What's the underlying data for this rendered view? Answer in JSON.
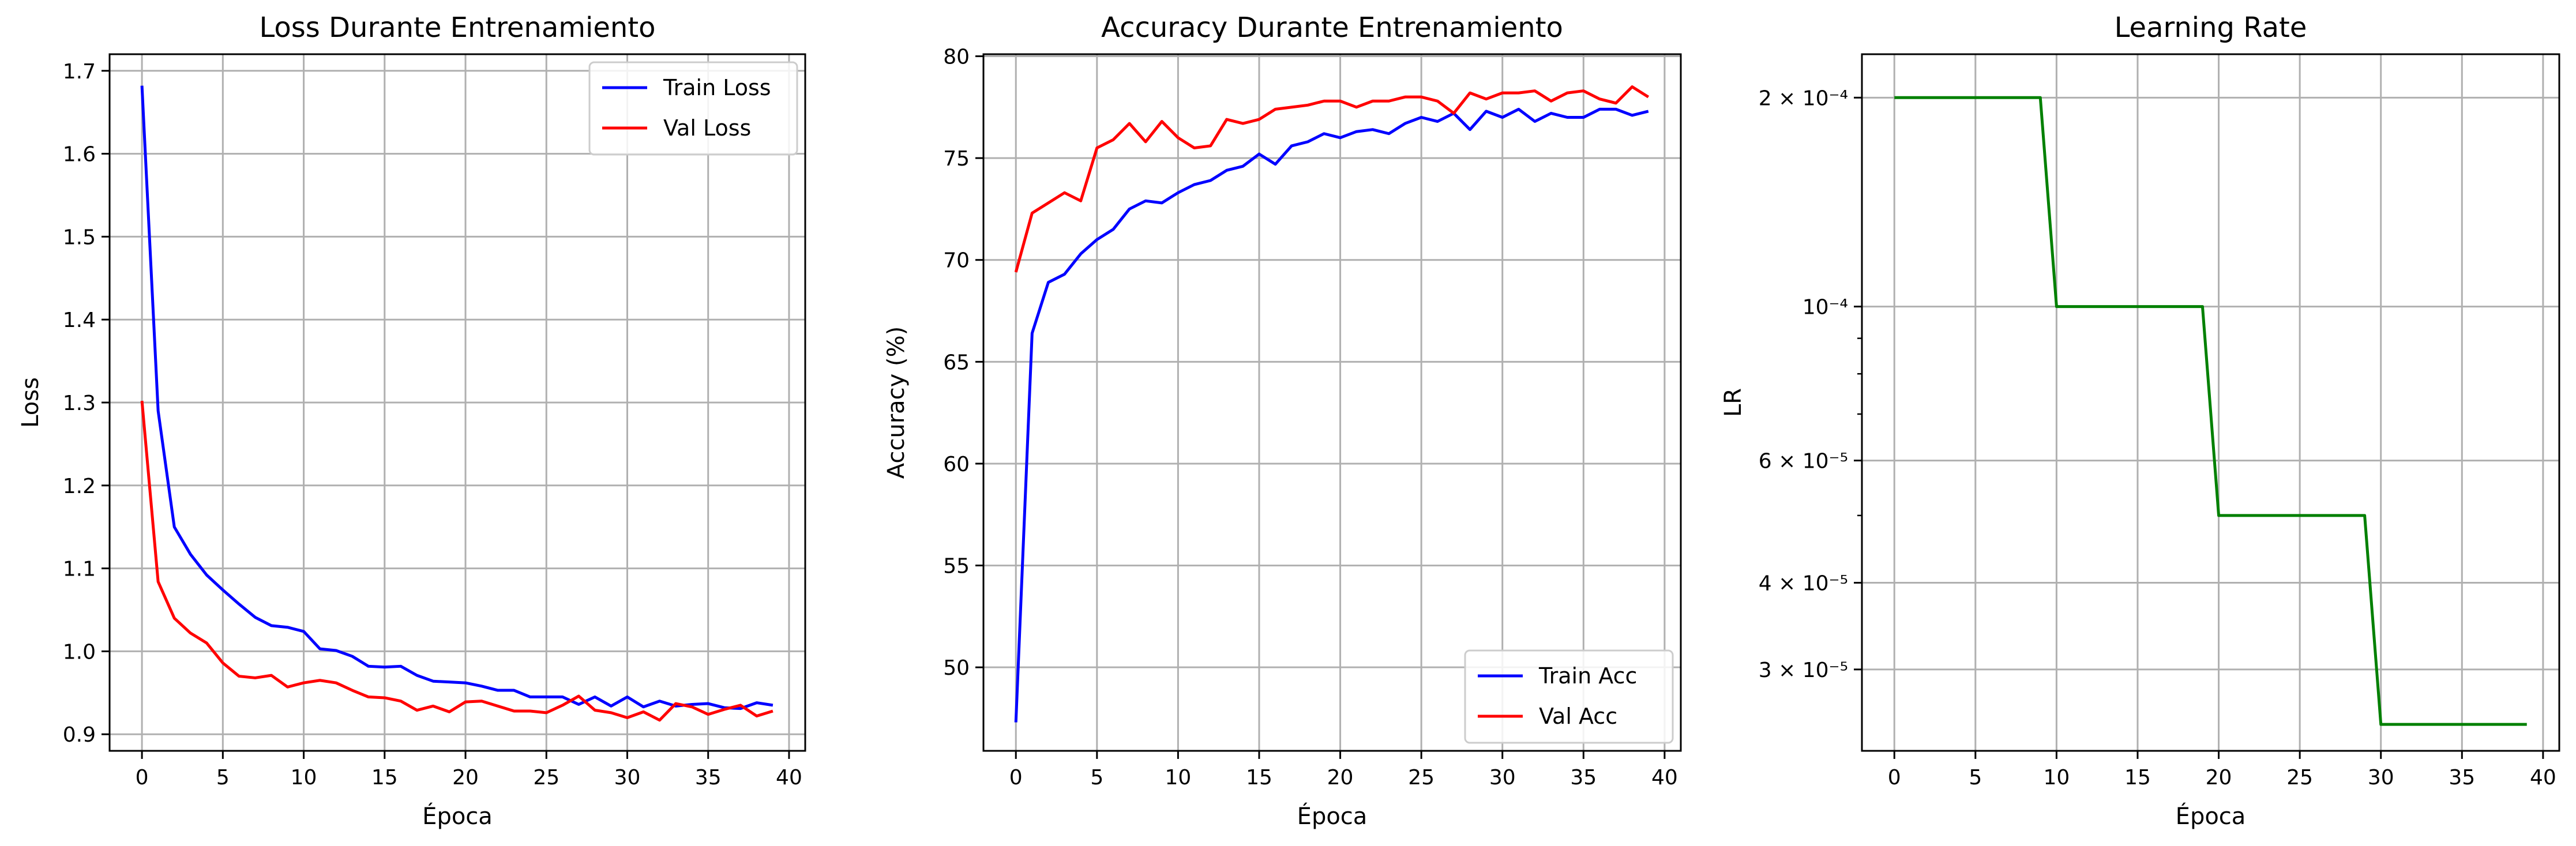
{
  "chart_data": [
    {
      "type": "line",
      "title": "Loss Durante Entrenamiento",
      "xlabel": "Época",
      "ylabel": "Loss",
      "xlim": [
        -2,
        41
      ],
      "ylim": [
        0.88,
        1.72
      ],
      "xticks": [
        0,
        5,
        10,
        15,
        20,
        25,
        30,
        35,
        40
      ],
      "yticks": [
        0.9,
        1.0,
        1.1,
        1.2,
        1.3,
        1.4,
        1.5,
        1.6,
        1.7
      ],
      "ytick_labels": [
        "0.9",
        "1.0",
        "1.1",
        "1.2",
        "1.3",
        "1.4",
        "1.5",
        "1.6",
        "1.7"
      ],
      "grid": true,
      "legend": "upper right",
      "x": [
        0,
        1,
        2,
        3,
        4,
        5,
        6,
        7,
        8,
        9,
        10,
        11,
        12,
        13,
        14,
        15,
        16,
        17,
        18,
        19,
        20,
        21,
        22,
        23,
        24,
        25,
        26,
        27,
        28,
        29,
        30,
        31,
        32,
        33,
        34,
        35,
        36,
        37,
        38,
        39
      ],
      "series": [
        {
          "name": "Train Loss",
          "color": "#0000ff",
          "values": [
            1.682,
            1.29,
            1.15,
            1.117,
            1.092,
            1.074,
            1.057,
            1.041,
            1.031,
            1.029,
            1.024,
            1.003,
            1.001,
            0.994,
            0.982,
            0.981,
            0.982,
            0.971,
            0.964,
            0.963,
            0.962,
            0.958,
            0.953,
            0.953,
            0.945,
            0.945,
            0.945,
            0.936,
            0.945,
            0.934,
            0.945,
            0.933,
            0.94,
            0.934,
            0.936,
            0.937,
            0.932,
            0.931,
            0.938,
            0.935
          ]
        },
        {
          "name": "Val Loss",
          "color": "#ff0000",
          "values": [
            1.302,
            1.084,
            1.04,
            1.022,
            1.01,
            0.986,
            0.97,
            0.968,
            0.971,
            0.957,
            0.962,
            0.965,
            0.962,
            0.953,
            0.945,
            0.944,
            0.94,
            0.929,
            0.934,
            0.927,
            0.939,
            0.94,
            0.934,
            0.928,
            0.928,
            0.926,
            0.935,
            0.946,
            0.929,
            0.926,
            0.92,
            0.927,
            0.917,
            0.937,
            0.933,
            0.924,
            0.93,
            0.935,
            0.922,
            0.928
          ]
        }
      ]
    },
    {
      "type": "line",
      "title": "Accuracy Durante Entrenamiento",
      "xlabel": "Época",
      "ylabel": "Accuracy (%)",
      "xlim": [
        -2,
        41
      ],
      "ylim": [
        45.9,
        80.1
      ],
      "xticks": [
        0,
        5,
        10,
        15,
        20,
        25,
        30,
        35,
        40
      ],
      "yticks": [
        50,
        55,
        60,
        65,
        70,
        75,
        80
      ],
      "ytick_labels": [
        "50",
        "55",
        "60",
        "65",
        "70",
        "75",
        "80"
      ],
      "grid": true,
      "legend": "lower right",
      "x": [
        0,
        1,
        2,
        3,
        4,
        5,
        6,
        7,
        8,
        9,
        10,
        11,
        12,
        13,
        14,
        15,
        16,
        17,
        18,
        19,
        20,
        21,
        22,
        23,
        24,
        25,
        26,
        27,
        28,
        29,
        30,
        31,
        32,
        33,
        34,
        35,
        36,
        37,
        38,
        39
      ],
      "series": [
        {
          "name": "Train Acc",
          "color": "#0000ff",
          "values": [
            47.3,
            66.4,
            68.9,
            69.3,
            70.3,
            71.0,
            71.5,
            72.5,
            72.9,
            72.8,
            73.3,
            73.7,
            73.9,
            74.4,
            74.6,
            75.2,
            74.7,
            75.6,
            75.8,
            76.2,
            76.0,
            76.3,
            76.4,
            76.2,
            76.7,
            77.0,
            76.8,
            77.2,
            76.4,
            77.3,
            77.0,
            77.4,
            76.8,
            77.2,
            77.0,
            77.0,
            77.4,
            77.4,
            77.1,
            77.3
          ]
        },
        {
          "name": "Val Acc",
          "color": "#ff0000",
          "values": [
            69.4,
            72.3,
            72.8,
            73.3,
            72.9,
            75.5,
            75.9,
            76.7,
            75.8,
            76.8,
            76.0,
            75.5,
            75.6,
            76.9,
            76.7,
            76.9,
            77.4,
            77.5,
            77.6,
            77.8,
            77.8,
            77.5,
            77.8,
            77.8,
            78.0,
            78.0,
            77.8,
            77.2,
            78.2,
            77.9,
            78.2,
            78.2,
            78.3,
            77.8,
            78.2,
            78.3,
            77.9,
            77.7,
            78.5,
            78.0
          ]
        }
      ]
    },
    {
      "type": "line",
      "title": "Learning Rate",
      "xlabel": "Época",
      "ylabel": "LR",
      "yscale": "log",
      "xlim": [
        -2,
        41
      ],
      "ylim": [
        2.29e-05,
        0.000231
      ],
      "xticks": [
        0,
        5,
        10,
        15,
        20,
        25,
        30,
        35,
        40
      ],
      "yticks": [
        0.0002,
        0.0001,
        6e-05,
        4e-05,
        3e-05
      ],
      "ytick_labels": [
        "2 × 10⁻⁴",
        "10⁻⁴",
        "6 × 10⁻⁵",
        "4 × 10⁻⁵",
        "3 × 10⁻⁵"
      ],
      "grid": true,
      "x": [
        0,
        1,
        2,
        3,
        4,
        5,
        6,
        7,
        8,
        9,
        10,
        11,
        12,
        13,
        14,
        15,
        16,
        17,
        18,
        19,
        20,
        21,
        22,
        23,
        24,
        25,
        26,
        27,
        28,
        29,
        30,
        31,
        32,
        33,
        34,
        35,
        36,
        37,
        38,
        39
      ],
      "series": [
        {
          "color": "#008000",
          "values": [
            0.0002,
            0.0002,
            0.0002,
            0.0002,
            0.0002,
            0.0002,
            0.0002,
            0.0002,
            0.0002,
            0.0002,
            0.0001,
            0.0001,
            0.0001,
            0.0001,
            0.0001,
            0.0001,
            0.0001,
            0.0001,
            0.0001,
            0.0001,
            5e-05,
            5e-05,
            5e-05,
            5e-05,
            5e-05,
            5e-05,
            5e-05,
            5e-05,
            5e-05,
            5e-05,
            2.5e-05,
            2.5e-05,
            2.5e-05,
            2.5e-05,
            2.5e-05,
            2.5e-05,
            2.5e-05,
            2.5e-05,
            2.5e-05,
            2.5e-05
          ]
        }
      ]
    }
  ]
}
